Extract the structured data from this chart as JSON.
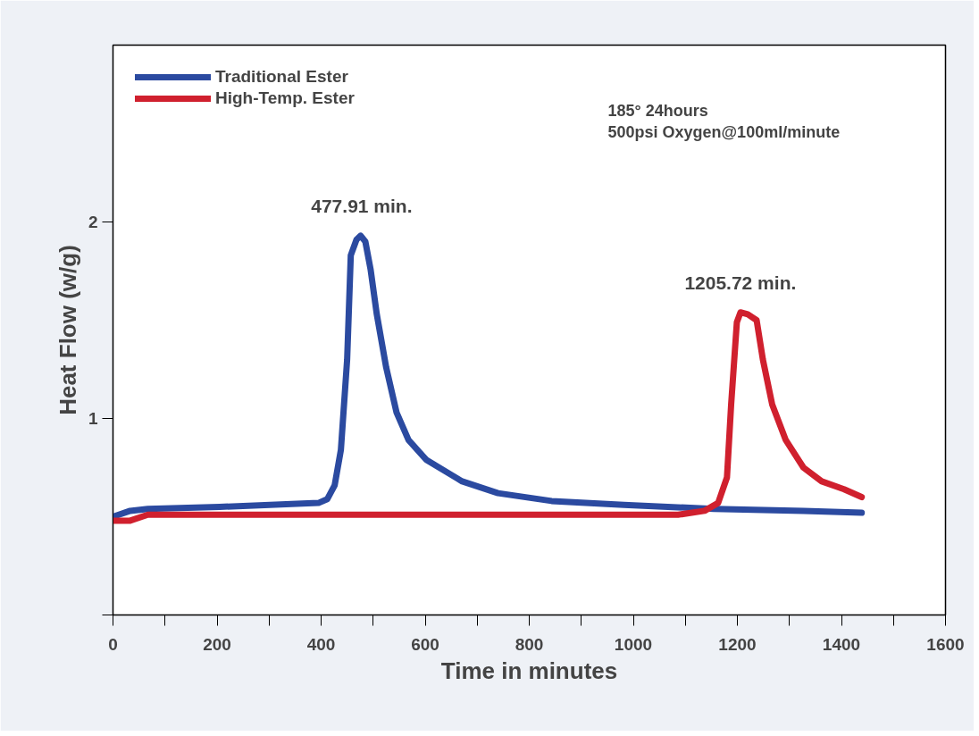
{
  "chart_data": {
    "type": "line",
    "xlabel": "Time in minutes",
    "ylabel": "Heat Flow (w/g)",
    "xlim": [
      0,
      1600
    ],
    "ylim": [
      0,
      2.9
    ],
    "xticks": [
      0,
      {
        "value": 100,
        "label": null
      },
      200,
      {
        "value": 300,
        "label": null
      },
      400,
      {
        "value": 500,
        "label": null
      },
      600,
      {
        "value": 700,
        "label": null
      },
      800,
      {
        "value": 900,
        "label": null
      },
      1000,
      {
        "value": 1100,
        "label": null
      },
      1200,
      {
        "value": 1300,
        "label": null
      },
      1400,
      {
        "value": 1500,
        "label": null
      },
      1600
    ],
    "yticks": [
      {
        "value": 0,
        "label": null
      },
      1,
      2
    ],
    "grid": false,
    "legend": "top left",
    "line_style": "solid",
    "marker": "none",
    "series": [
      {
        "name": "Traditional Ester",
        "color": "#2b4aa0",
        "x": [
          0,
          33,
          67,
          205,
          395,
          412,
          426,
          438,
          450,
          457,
          468,
          476,
          485,
          495,
          507,
          525,
          545,
          568,
          602,
          671,
          740,
          843,
          982,
          1155,
          1327,
          1439
        ],
        "values": [
          0.5,
          0.53,
          0.54,
          0.55,
          0.57,
          0.59,
          0.66,
          0.84,
          1.3,
          1.83,
          1.91,
          1.93,
          1.9,
          1.76,
          1.53,
          1.26,
          1.03,
          0.89,
          0.79,
          0.68,
          0.62,
          0.58,
          0.56,
          0.54,
          0.53,
          0.52
        ]
      },
      {
        "name": "High-Temp. Ester",
        "color": "#d0202e",
        "x": [
          0,
          33,
          67,
          292,
          1086,
          1137,
          1163,
          1180,
          1188,
          1199,
          1206,
          1220,
          1237,
          1249,
          1267,
          1293,
          1327,
          1362,
          1405,
          1439
        ],
        "values": [
          0.48,
          0.48,
          0.51,
          0.51,
          0.51,
          0.53,
          0.57,
          0.7,
          1.07,
          1.49,
          1.54,
          1.53,
          1.5,
          1.3,
          1.07,
          0.89,
          0.75,
          0.68,
          0.64,
          0.6
        ]
      }
    ],
    "annotations": [
      {
        "text": "477.91 min.",
        "x": 477.91,
        "y": 1.93
      },
      {
        "text": "1205.72 min.",
        "x": 1205.72,
        "y": 1.54
      },
      "185° 24hours",
      "500psi Oxygen@100ml/minute"
    ]
  }
}
